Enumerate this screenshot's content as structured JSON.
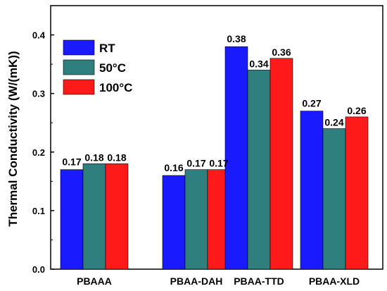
{
  "chart_data": {
    "type": "bar",
    "title": "",
    "xlabel": "",
    "ylabel": "Thermal Conductivity (W/(mK))",
    "ylim": [
      0,
      0.45
    ],
    "yticks": [
      "0.0",
      "0.1",
      "0.2",
      "0.3",
      "0.4"
    ],
    "ytick_values": [
      0,
      0.1,
      0.2,
      0.3,
      0.4
    ],
    "grid": false,
    "legend_position": "top-left",
    "categories": [
      "PBAAA",
      "PBAA-DAH",
      "PBAA-TTD",
      "PBAA-XLD"
    ],
    "series": [
      {
        "name": "RT",
        "color": "#1a1aff",
        "values": [
          0.17,
          0.16,
          0.38,
          0.27
        ],
        "labels": [
          "0.17",
          "0.16",
          "0.38",
          "0.27"
        ]
      },
      {
        "name": "50°C",
        "color": "#2f7f7f",
        "values": [
          0.18,
          0.17,
          0.34,
          0.24
        ],
        "labels": [
          "0.18",
          "0.17",
          "0.34",
          "0.24"
        ]
      },
      {
        "name": "100°C",
        "color": "#ff1a1a",
        "values": [
          0.18,
          0.17,
          0.36,
          0.26
        ],
        "labels": [
          "0.18",
          "0.17",
          "0.36",
          "0.26"
        ]
      }
    ]
  }
}
